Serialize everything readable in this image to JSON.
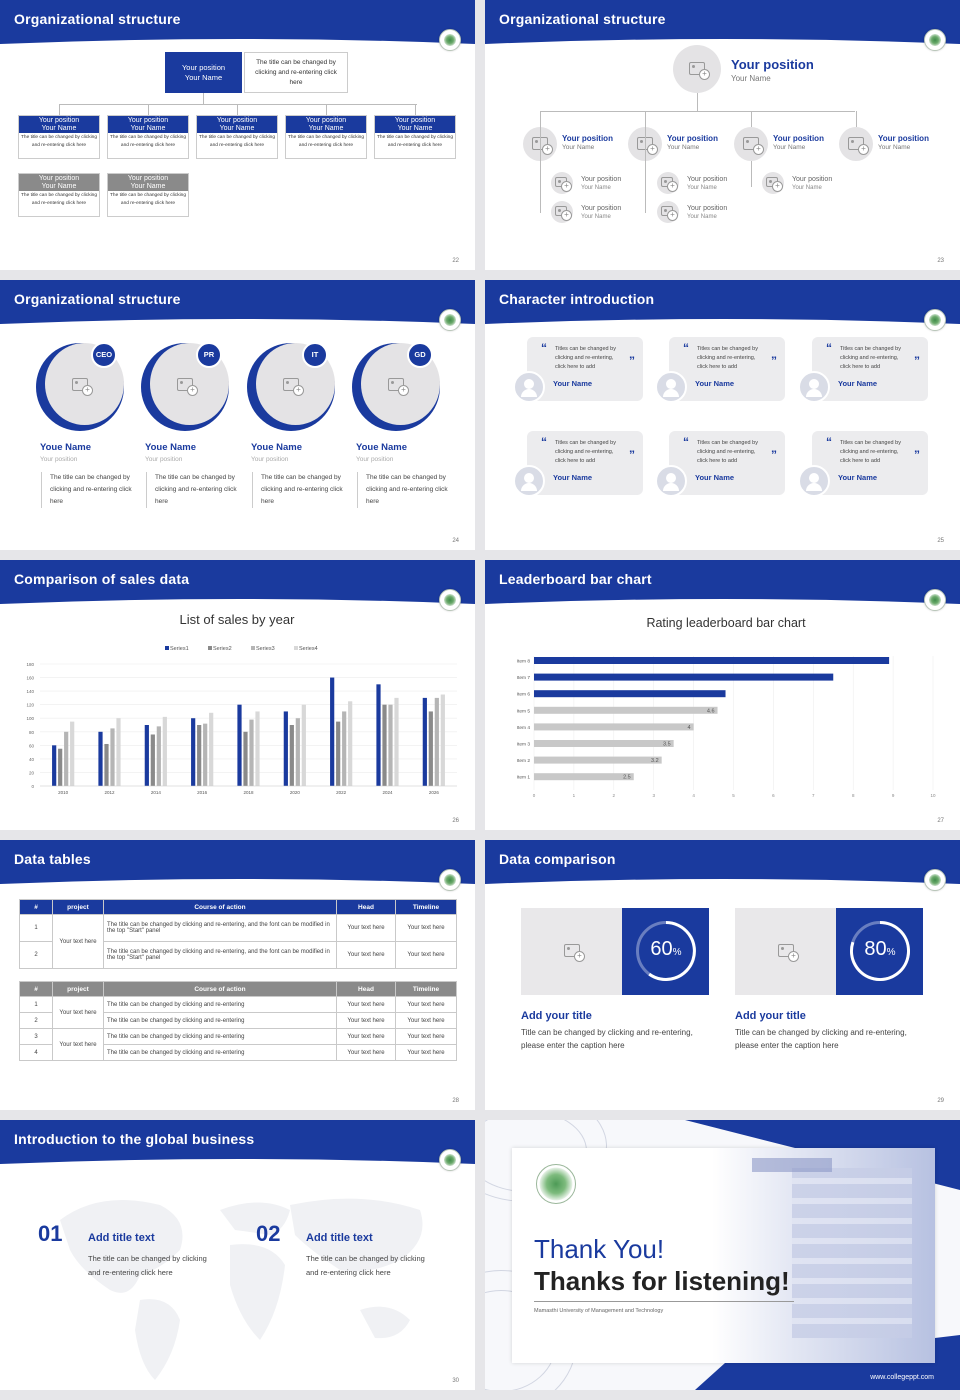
{
  "colors": {
    "primary": "#1a3a9e",
    "gray": "#8a8a8a",
    "light": "#e4e3e5",
    "bar_gray": "#c8c8c8"
  },
  "s22": {
    "title": "Organizational structure",
    "page": "22",
    "top": {
      "l1": "Your position",
      "l2": "Your Name",
      "desc": "The title can be changed by clicking and re-entering click here"
    },
    "boxes": [
      {
        "l1": "Your position",
        "l2": "Your Name",
        "desc": "The title can be changed by clicking and re-entering click here"
      },
      {
        "l1": "Your position",
        "l2": "Your Name",
        "desc": "The title can be changed by clicking and re-entering click here"
      },
      {
        "l1": "Your position",
        "l2": "Your Name",
        "desc": "The title can be changed by clicking and re-entering click here"
      },
      {
        "l1": "Your position",
        "l2": "Your Name",
        "desc": "The title can be changed by clicking and re-entering click here"
      },
      {
        "l1": "Your position",
        "l2": "Your Name",
        "desc": "The title can be changed by clicking and re-entering click here"
      },
      {
        "l1": "Your position",
        "l2": "Your Name",
        "desc": "The title can be changed by clicking and re-entering click here"
      },
      {
        "l1": "Your position",
        "l2": "Your Name",
        "desc": "The title can be changed by clicking and re-entering click here"
      }
    ]
  },
  "s23": {
    "title": "Organizational structure",
    "page": "23",
    "top": {
      "pos": "Your position",
      "name": "Your Name"
    },
    "mid": [
      {
        "pos": "Your position",
        "name": "Your Name"
      },
      {
        "pos": "Your position",
        "name": "Your Name"
      },
      {
        "pos": "Your position",
        "name": "Your Name"
      },
      {
        "pos": "Your position",
        "name": "Your Name"
      }
    ],
    "sub": [
      {
        "pos": "Your position",
        "name": "Your Name"
      },
      {
        "pos": "Your position",
        "name": "Your Name"
      },
      {
        "pos": "Your position",
        "name": "Your Name"
      },
      {
        "pos": "Your position",
        "name": "Your Name"
      },
      {
        "pos": "Your position",
        "name": "Your Name"
      }
    ]
  },
  "s24": {
    "title": "Organizational structure",
    "page": "24",
    "people": [
      {
        "badge": "CEO",
        "name": "Youe Name",
        "pos": "Your position",
        "desc": "The title can be changed by clicking and re-entering click here"
      },
      {
        "badge": "PR",
        "name": "Youe Name",
        "pos": "Your position",
        "desc": "The title can be changed by clicking and re-entering click here"
      },
      {
        "badge": "IT",
        "name": "Youe Name",
        "pos": "Your position",
        "desc": "The title can be changed by clicking and re-entering click here"
      },
      {
        "badge": "GD",
        "name": "Youe Name",
        "pos": "Your position",
        "desc": "The title can be changed by clicking and re-entering click here"
      }
    ]
  },
  "s25": {
    "title": "Character introduction",
    "page": "25",
    "open_quote": "“",
    "close_quote": "”",
    "cards": [
      {
        "text": "Titles can be changed by clicking and re-entering, click here to add",
        "name": "Your Name"
      },
      {
        "text": "Titles can be changed by clicking and re-entering, click here to add",
        "name": "Your Name"
      },
      {
        "text": "Titles can be changed by clicking and re-entering, click here to add",
        "name": "Your Name"
      },
      {
        "text": "Titles can be changed by clicking and re-entering, click here to add",
        "name": "Your Name"
      },
      {
        "text": "Titles can be changed by clicking and re-entering, click here to add",
        "name": "Your Name"
      },
      {
        "text": "Titles can be changed by clicking and re-entering, click here to add",
        "name": "Your Name"
      }
    ]
  },
  "s26": {
    "title": "Comparison of sales data",
    "page": "26"
  },
  "s27": {
    "title": "Leaderboard bar chart",
    "page": "27"
  },
  "s28": {
    "title": "Data tables",
    "page": "28",
    "t1": {
      "headers": [
        "#",
        "project",
        "Course of action",
        "Head",
        "Timeline"
      ],
      "rows": [
        {
          "n": "1",
          "action": "The title can be changed by clicking and re-entering, and the font can be modified in the top \"Start\" panel",
          "head": "Your text here",
          "time": "Your text here"
        },
        {
          "n": "2",
          "action": "The title can be changed by clicking and re-entering, and the font can be modified in the top \"Start\" panel",
          "head": "Your text here",
          "time": "Your text here"
        }
      ],
      "project": "Your text here"
    },
    "t2": {
      "headers": [
        "#",
        "project",
        "Course of action",
        "Head",
        "Timeline"
      ],
      "rows": [
        {
          "n": "1",
          "action": "The title can be changed by clicking and re-entering",
          "head": "Your text here",
          "time": "Your text here"
        },
        {
          "n": "2",
          "action": "The title can be changed by clicking and re-entering",
          "head": "Your text here",
          "time": "Your text here"
        },
        {
          "n": "3",
          "action": "The title can be changed by clicking and re-entering",
          "head": "Your text here",
          "time": "Your text here"
        },
        {
          "n": "4",
          "action": "The title can be changed by clicking and re-entering",
          "head": "Your text here",
          "time": "Your text here"
        }
      ],
      "project_a": "Your text here",
      "project_b": "Your text here"
    }
  },
  "s29": {
    "title": "Data comparison",
    "page": "29",
    "items": [
      {
        "pct": 60,
        "pct_num": "60",
        "unit": "%",
        "title": "Add your title",
        "desc": "Title can be changed by clicking and re-entering, please enter the caption here"
      },
      {
        "pct": 80,
        "pct_num": "80",
        "unit": "%",
        "title": "Add your title",
        "desc": "Title can be changed by clicking and re-entering, please enter the caption here"
      }
    ]
  },
  "s30": {
    "title": "Introduction to the global business",
    "page": "30",
    "items": [
      {
        "num": "01",
        "title": "Add title text",
        "desc": "The title can be changed by clicking and re-entering click here"
      },
      {
        "num": "02",
        "title": "Add title text",
        "desc": "The title can be changed by clicking and re-entering click here"
      }
    ]
  },
  "s31": {
    "thank": "Thank You!",
    "thanks": "Thanks for listening!",
    "university": "Mamasthi University of Management and Technology",
    "url": "www.collegeppt.com"
  },
  "chart_data": [
    {
      "type": "bar",
      "title": "List of sales by year",
      "categories": [
        "2010",
        "2012",
        "2014",
        "2016",
        "2018",
        "2020",
        "2022",
        "2024",
        "2026"
      ],
      "ylim": [
        0,
        180
      ],
      "yticks": [
        0,
        20,
        40,
        60,
        80,
        100,
        120,
        140,
        160,
        180
      ],
      "series": [
        {
          "name": "Series1",
          "color": "#1a3a9e",
          "values": [
            60,
            80,
            90,
            100,
            120,
            110,
            160,
            150,
            130
          ]
        },
        {
          "name": "Series2",
          "color": "#8a8a8a",
          "values": [
            55,
            62,
            76,
            90,
            80,
            90,
            95,
            120,
            110
          ]
        },
        {
          "name": "Series3",
          "color": "#b5b5b5",
          "values": [
            80,
            85,
            88,
            92,
            98,
            100,
            110,
            120,
            130
          ]
        },
        {
          "name": "Series4",
          "color": "#d8d8d8",
          "values": [
            95,
            100,
            102,
            108,
            110,
            120,
            125,
            130,
            135
          ]
        }
      ],
      "legend": "top",
      "grid": true
    },
    {
      "type": "bar",
      "orientation": "horizontal",
      "title": "Rating leaderboard bar chart",
      "categories": [
        "Item 8",
        "Item 7",
        "Item 6",
        "Item 5",
        "Item 4",
        "Item 3",
        "Item 2",
        "Item 1"
      ],
      "values": [
        8.9,
        7.5,
        4.8,
        4.6,
        4.0,
        3.5,
        3.2,
        2.5
      ],
      "labels": [
        "",
        "",
        "",
        "4.6",
        "4",
        "3.5",
        "3.2",
        "2.5"
      ],
      "highlight": [
        "Item 8",
        "Item 7",
        "Item 6"
      ],
      "xlim": [
        0,
        10
      ],
      "xticks": [
        "0",
        "1",
        "2",
        "3",
        "4",
        "5",
        "6",
        "7",
        "8",
        "9",
        "10"
      ]
    }
  ]
}
